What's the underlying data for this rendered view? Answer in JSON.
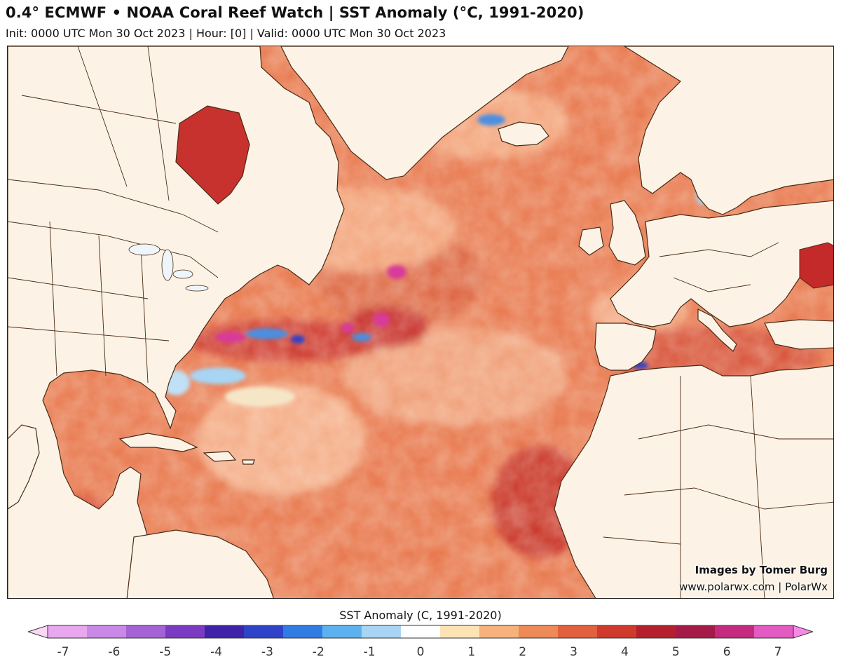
{
  "header": {
    "title": "0.4° ECMWF • NOAA Coral Reef Watch | SST Anomaly (°C, 1991-2020)",
    "subtitle": "Init: 0000 UTC Mon 30 Oct 2023 | Hour: [0] | Valid: 0000 UTC Mon 30 Oct 2023"
  },
  "map": {
    "region": "North Atlantic",
    "credits": [
      "Images by Tomer Burg",
      "www.polarwx.com | PolarWx"
    ],
    "colors": {
      "land": "#fcf3e6",
      "ocean_warm": "#e8794f",
      "ocean_hot": "#c42a2a",
      "ocean_extreme": "#d83a9a",
      "ocean_cool": "#5aa6e8",
      "border": "#4a2a14"
    }
  },
  "colorbar": {
    "title": "SST Anomaly (C, 1991-2020)",
    "min": -7,
    "max": 7,
    "ticks": [
      "-7",
      "-6",
      "-5",
      "-4",
      "-3",
      "-2",
      "-1",
      "0",
      "1",
      "2",
      "3",
      "4",
      "5",
      "6",
      "7"
    ],
    "stops": [
      "#fbd7f4",
      "#e8a7ef",
      "#c989e6",
      "#a562d6",
      "#7a3bc2",
      "#3f22a8",
      "#2f43c9",
      "#2f7de3",
      "#5cb2ef",
      "#a8d5f4",
      "#ffffff",
      "#fde3b4",
      "#f7b27c",
      "#ee8958",
      "#e2603d",
      "#cf3a2c",
      "#b4202d",
      "#a61a48",
      "#c42a7e",
      "#e35ac2",
      "#f58ae6"
    ]
  }
}
